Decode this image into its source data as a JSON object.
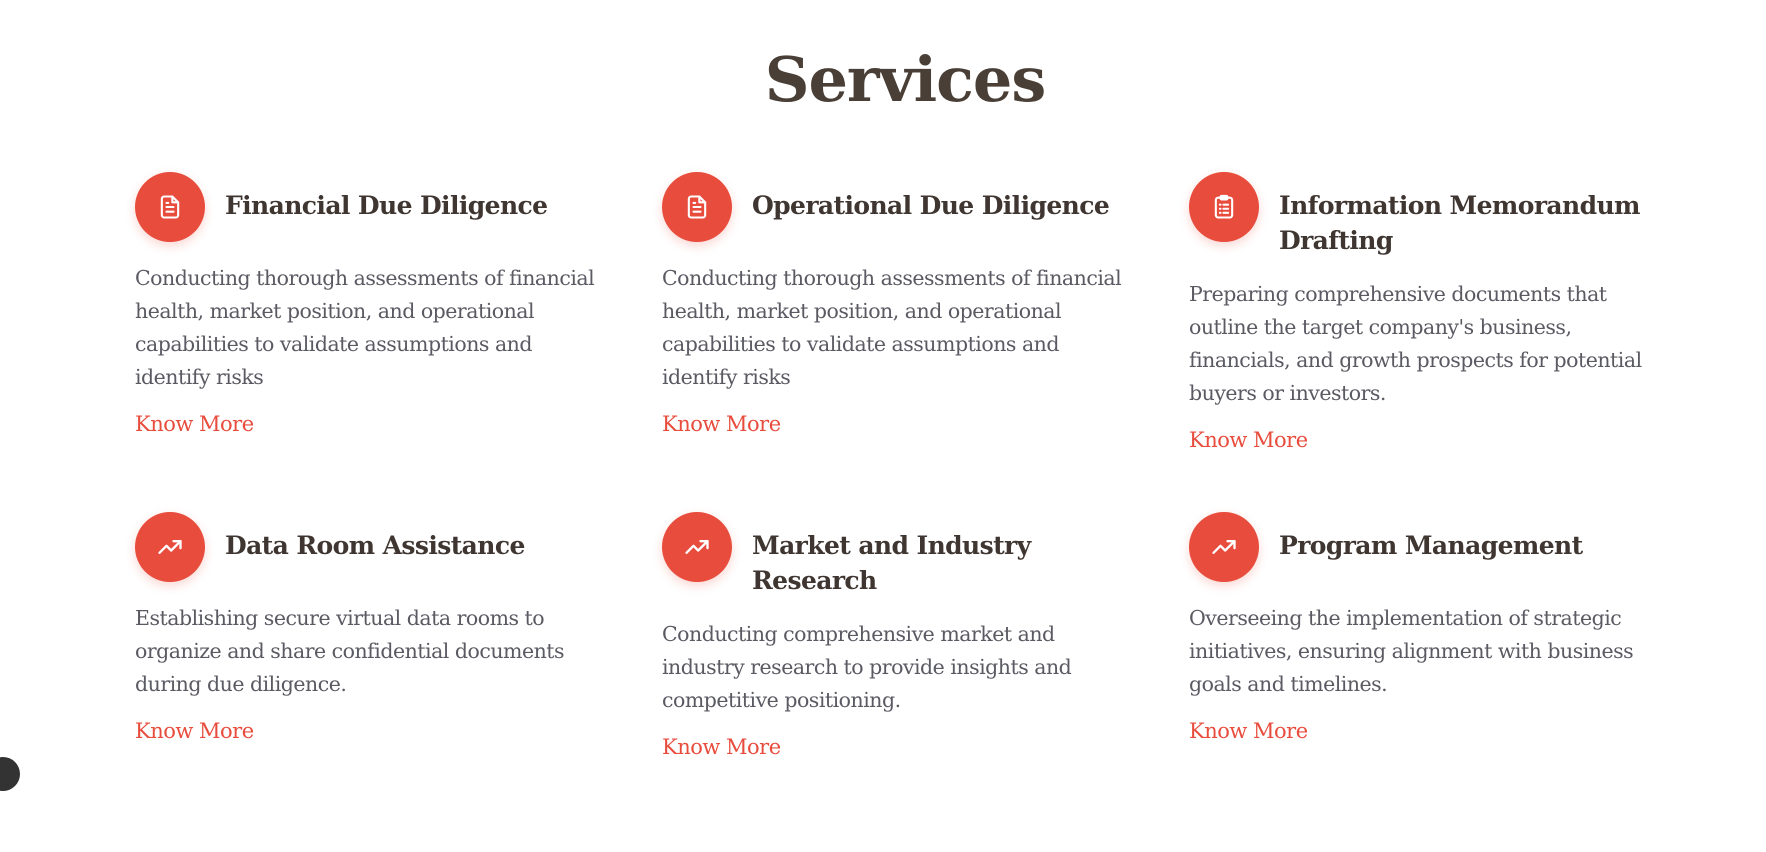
{
  "section": {
    "title": "Services"
  },
  "theme": {
    "accent": "#e84c3d",
    "heading": "#3f3631",
    "body_text": "#5a5a63"
  },
  "services": [
    {
      "title": "Financial Due Diligence",
      "description": "Conducting thorough assessments of financial health, market position, and operational capabilities to validate assumptions and identify risks",
      "link": "Know More",
      "icon": "document-icon"
    },
    {
      "title": "Operational Due Diligence",
      "description": "Conducting thorough assessments of financial health, market position, and operational capabilities to validate assumptions and identify risks",
      "link": "Know More",
      "icon": "document-icon"
    },
    {
      "title": "Information Memorandum Drafting",
      "description": "Preparing comprehensive documents that outline the target company's business, financials, and growth prospects for potential buyers or investors.",
      "link": "Know More",
      "icon": "clipboard-list-icon"
    },
    {
      "title": "Data Room Assistance",
      "description": "Establishing secure virtual data rooms to organize and share confidential documents during due diligence.",
      "link": "Know More",
      "icon": "trending-up-icon"
    },
    {
      "title": "Market and Industry Research",
      "description": "Conducting comprehensive market and industry research to provide insights and competitive positioning.",
      "link": "Know More",
      "icon": "trending-up-icon"
    },
    {
      "title": "Program Management",
      "description": "Overseeing the implementation of strategic initiatives, ensuring alignment with business goals and timelines.",
      "link": "Know More",
      "icon": "trending-up-icon"
    }
  ]
}
